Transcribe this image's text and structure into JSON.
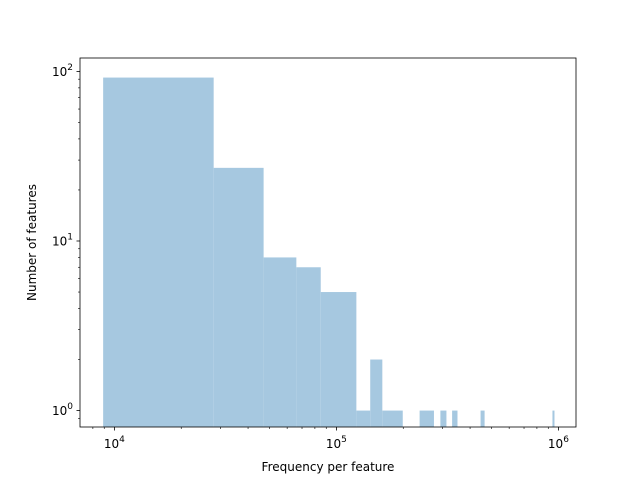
{
  "chart_data": {
    "type": "bar",
    "title": "",
    "xlabel": "Frequency per feature",
    "ylabel": "Number of features",
    "xscale": "log",
    "yscale": "log",
    "xlim": [
      7000,
      1200000
    ],
    "ylim": [
      0.8,
      120
    ],
    "grid": false,
    "bar_color": "#a6c8e0",
    "x_ticks": [
      {
        "value": 10000,
        "base": "10",
        "exp": "4"
      },
      {
        "value": 100000,
        "base": "10",
        "exp": "5"
      },
      {
        "value": 1000000,
        "base": "10",
        "exp": "6"
      }
    ],
    "y_ticks": [
      {
        "value": 1,
        "base": "10",
        "exp": "0"
      },
      {
        "value": 10,
        "base": "10",
        "exp": "1"
      },
      {
        "value": 100,
        "base": "10",
        "exp": "2"
      }
    ],
    "bins": [
      {
        "x0": 8900,
        "x1": 28000,
        "count": 92
      },
      {
        "x0": 28000,
        "x1": 47000,
        "count": 27
      },
      {
        "x0": 47000,
        "x1": 66000,
        "count": 8
      },
      {
        "x0": 66000,
        "x1": 85000,
        "count": 7
      },
      {
        "x0": 85000,
        "x1": 123000,
        "count": 5
      },
      {
        "x0": 123000,
        "x1": 142000,
        "count": 1
      },
      {
        "x0": 142000,
        "x1": 161000,
        "count": 2
      },
      {
        "x0": 161000,
        "x1": 199000,
        "count": 1
      },
      {
        "x0": 237000,
        "x1": 275000,
        "count": 1
      },
      {
        "x0": 294000,
        "x1": 313000,
        "count": 1
      },
      {
        "x0": 332000,
        "x1": 351000,
        "count": 1
      },
      {
        "x0": 446000,
        "x1": 465000,
        "count": 1
      },
      {
        "x0": 940000,
        "x1": 960000,
        "count": 1
      }
    ]
  }
}
